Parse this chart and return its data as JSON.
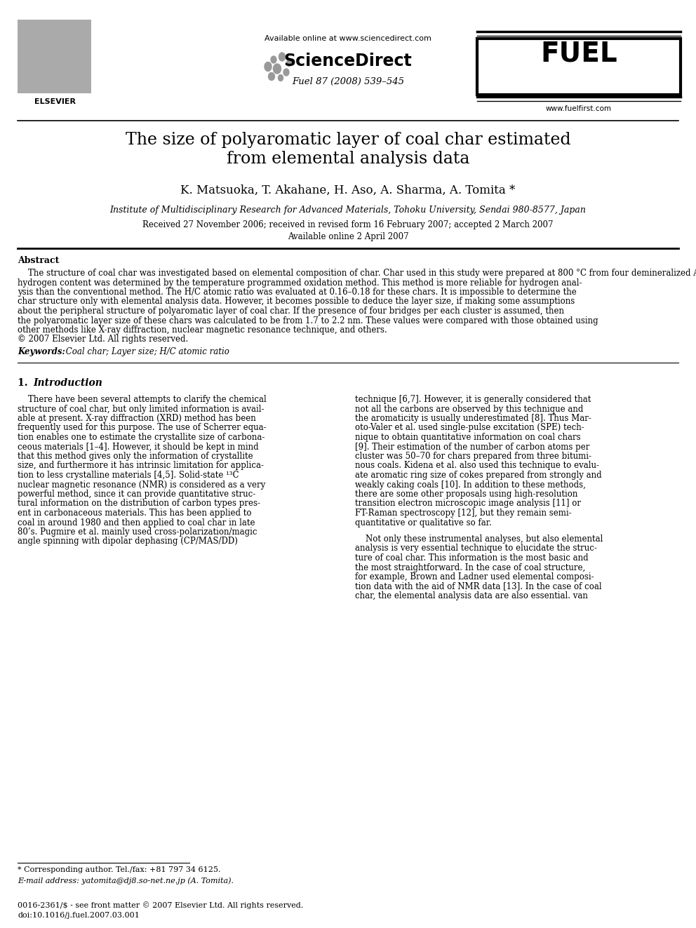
{
  "page_width": 9.92,
  "page_height": 13.23,
  "bg_color": "#ffffff",
  "header": {
    "elsevier_text": "ELSEVIER",
    "available_online": "Available online at www.sciencedirect.com",
    "sciencedirect": "ScienceDirect",
    "journal_info": "Fuel 87 (2008) 539–545",
    "fuel_logo_text": "FUEL",
    "website": "www.fuelfirst.com"
  },
  "title_line1": "The size of polyaromatic layer of coal char estimated",
  "title_line2": "from elemental analysis data",
  "authors": "K. Matsuoka, T. Akahane, H. Aso, A. Sharma, A. Tomita *",
  "affiliation": "Institute of Multidisciplinary Research for Advanced Materials, Tohoku University, Sendai 980-8577, Japan",
  "received": "Received 27 November 2006; received in revised form 16 February 2007; accepted 2 March 2007",
  "available": "Available online 2 April 2007",
  "abstract_title": "Abstract",
  "keywords_label": "Keywords:",
  "keywords": " Coal char; Layer size; H/C atomic ratio",
  "footnote_star": "* Corresponding author. Tel./fax: +81 797 34 6125.",
  "footnote_email": "E-mail address: yatomita@dj8.so-net.ne.jp (A. Tomita).",
  "footer_issn": "0016-2361/$ - see front matter © 2007 Elsevier Ltd. All rights reserved.",
  "footer_doi": "doi:10.1016/j.fuel.2007.03.001",
  "abstract_lines": [
    "    The structure of coal char was investigated based on elemental composition of char. Char used in this study were prepared at 800 °C from four demineralized Argonne Premium Coals. Elemental analysis was made using the conventional ultimate analysis method, and",
    "hydrogen content was determined by the temperature programmed oxidation method. This method is more reliable for hydrogen anal-",
    "ysis than the conventional method. The H/C atomic ratio was evaluated at 0.16–0.18 for these chars. It is impossible to determine the",
    "char structure only with elemental analysis data. However, it becomes possible to deduce the layer size, if making some assumptions",
    "about the peripheral structure of polyaromatic layer of coal char. If the presence of four bridges per each cluster is assumed, then",
    "the polyaromatic layer size of these chars was calculated to be from 1.7 to 2.2 nm. These values were compared with those obtained using",
    "other methods like X-ray diffraction, nuclear magnetic resonance technique, and others.",
    "© 2007 Elsevier Ltd. All rights reserved."
  ],
  "left_col": [
    "    There have been several attempts to clarify the chemical",
    "structure of coal char, but only limited information is avail-",
    "able at present. X-ray diffraction (XRD) method has been",
    "frequently used for this purpose. The use of Scherrer equa-",
    "tion enables one to estimate the crystallite size of carbona-",
    "ceous materials [1–4]. However, it should be kept in mind",
    "that this method gives only the information of crystallite",
    "size, and furthermore it has intrinsic limitation for applica-",
    "tion to less crystalline materials [4,5]. Solid-state ¹³C",
    "nuclear magnetic resonance (NMR) is considered as a very",
    "powerful method, since it can provide quantitative struc-",
    "tural information on the distribution of carbon types pres-",
    "ent in carbonaceous materials. This has been applied to",
    "coal in around 1980 and then applied to coal char in late",
    "80’s. Pugmire et al. mainly used cross-polarization/magic",
    "angle spinning with dipolar dephasing (CP/MAS/DD)"
  ],
  "right_col1": [
    "technique [6,7]. However, it is generally considered that",
    "not all the carbons are observed by this technique and",
    "the aromaticity is usually underestimated [8]. Thus Mar-",
    "oto-Valer et al. used single-pulse excitation (SPE) tech-",
    "nique to obtain quantitative information on coal chars",
    "[9]. Their estimation of the number of carbon atoms per",
    "cluster was 50–70 for chars prepared from three bitumi-",
    "nous coals. Kidena et al. also used this technique to evalu-",
    "ate aromatic ring size of cokes prepared from strongly and",
    "weakly caking coals [10]. In addition to these methods,",
    "there are some other proposals using high-resolution",
    "transition electron microscopic image analysis [11] or",
    "FT-Raman spectroscopy [12], but they remain semi-",
    "quantitative or qualitative so far."
  ],
  "right_col2": [
    "    Not only these instrumental analyses, but also elemental",
    "analysis is very essential technique to elucidate the struc-",
    "ture of coal char. This information is the most basic and",
    "the most straightforward. In the case of coal structure,",
    "for example, Brown and Ladner used elemental composi-",
    "tion data with the aid of NMR data [13]. In the case of coal",
    "char, the elemental analysis data are also essential. van"
  ]
}
